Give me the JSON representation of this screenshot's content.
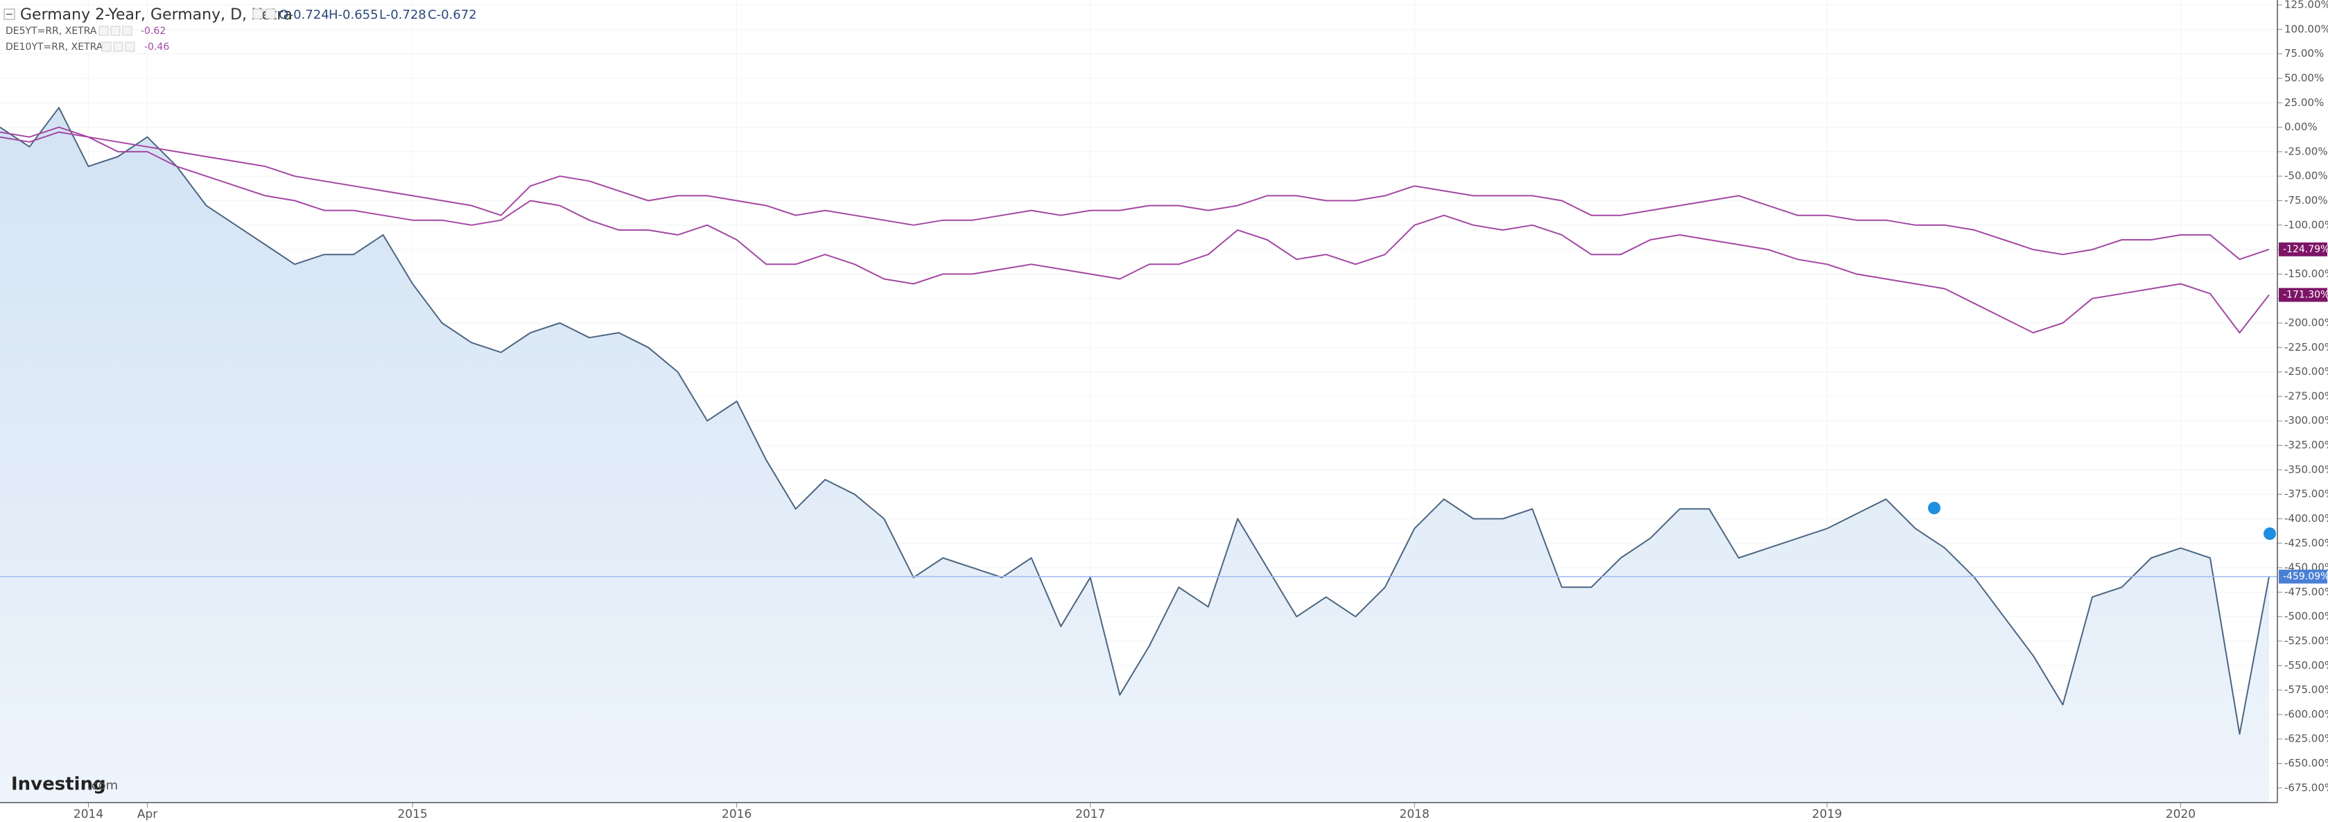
{
  "chart_data": {
    "type": "line",
    "title": "Germany 2-Year, Germany, D, Xetra",
    "ohlc": [
      "O-0.724",
      "H-0.655",
      "L-0.728",
      "C-0.672"
    ],
    "brand": [
      "Investing",
      ".com"
    ],
    "grid": true,
    "categories": [
      null,
      null,
      null,
      "2014",
      null,
      "Apr",
      null,
      null,
      null,
      null,
      null,
      null,
      null,
      null,
      "2015",
      null,
      null,
      null,
      null,
      null,
      null,
      null,
      null,
      null,
      null,
      "2016",
      null,
      null,
      null,
      null,
      null,
      null,
      null,
      null,
      null,
      null,
      null,
      "2017",
      null,
      null,
      null,
      null,
      null,
      null,
      null,
      null,
      null,
      null,
      "2018",
      null,
      null,
      null,
      null,
      null,
      null,
      null,
      null,
      null,
      null,
      null,
      null,
      null,
      "2019",
      null,
      null,
      null,
      null,
      null,
      null,
      null,
      null,
      null,
      null,
      null,
      "2020",
      null,
      null,
      null
    ],
    "series": [
      {
        "name": "Germany 2-Year, Germany, D, Xetra",
        "color": "#4b6582",
        "fill": "#dde9f6",
        "last_label": "-459.09%",
        "badge": "#4a7fd4",
        "values": [
          0,
          -20,
          20,
          -40,
          -30,
          -10,
          -40,
          -80,
          -100,
          -120,
          -140,
          -130,
          -130,
          -110,
          -160,
          -200,
          -220,
          -230,
          -210,
          -200,
          -215,
          -210,
          -225,
          -250,
          -300,
          -280,
          -340,
          -390,
          -360,
          -375,
          -400,
          -460,
          -440,
          -450,
          -460,
          -440,
          -510,
          -460,
          -580,
          -530,
          -470,
          -490,
          -400,
          -450,
          -500,
          -480,
          -500,
          -470,
          -410,
          -380,
          -400,
          -400,
          -390,
          -470,
          -470,
          -440,
          -420,
          -390,
          -390,
          -440,
          -430,
          -420,
          -410,
          -395,
          -380,
          -410,
          -430,
          -460,
          -500,
          -540,
          -590,
          -480,
          -470,
          -440,
          -430,
          -440,
          -620,
          -459.09
        ]
      },
      {
        "name": "DE5YT=RR, XETRA",
        "legend_value": "-0.62",
        "color": "#a347a3",
        "last_label": "-124.79%",
        "badge": "#7d1466",
        "values": [
          -5,
          -10,
          0,
          -10,
          -15,
          -20,
          -25,
          -30,
          -35,
          -40,
          -50,
          -55,
          -60,
          -65,
          -70,
          -75,
          -80,
          -90,
          -60,
          -50,
          -55,
          -65,
          -75,
          -70,
          -70,
          -75,
          -80,
          -90,
          -85,
          -90,
          -95,
          -100,
          -95,
          -95,
          -90,
          -85,
          -90,
          -85,
          -85,
          -80,
          -80,
          -85,
          -80,
          -70,
          -70,
          -75,
          -75,
          -70,
          -60,
          -65,
          -70,
          -70,
          -70,
          -75,
          -90,
          -90,
          -85,
          -80,
          -75,
          -70,
          -80,
          -90,
          -90,
          -95,
          -95,
          -100,
          -100,
          -105,
          -115,
          -125,
          -130,
          -125,
          -115,
          -115,
          -110,
          -110,
          -135,
          -124.79
        ]
      },
      {
        "name": "DE10YT=RR, XETRA",
        "legend_value": "-0.46",
        "color": "#a347a3",
        "last_label": "-171.30%",
        "badge": "#7d1466",
        "values": [
          -10,
          -15,
          -5,
          -10,
          -25,
          -25,
          -40,
          -50,
          -60,
          -70,
          -75,
          -85,
          -85,
          -90,
          -95,
          -95,
          -100,
          -95,
          -75,
          -80,
          -95,
          -105,
          -105,
          -110,
          -100,
          -115,
          -140,
          -140,
          -130,
          -140,
          -155,
          -160,
          -150,
          -150,
          -145,
          -140,
          -145,
          -150,
          -155,
          -140,
          -140,
          -130,
          -105,
          -115,
          -135,
          -130,
          -140,
          -130,
          -100,
          -90,
          -100,
          -105,
          -100,
          -110,
          -130,
          -130,
          -115,
          -110,
          -115,
          -120,
          -125,
          -135,
          -140,
          -150,
          -155,
          -160,
          -165,
          -180,
          -195,
          -210,
          -200,
          -175,
          -170,
          -165,
          -160,
          -170,
          -210,
          -171.3
        ]
      }
    ],
    "ylim": [
      -690,
      130
    ],
    "yticks": [
      {
        "value": 125,
        "label": "125.00%"
      },
      {
        "value": 100,
        "label": "100.00%"
      },
      {
        "value": 75,
        "label": "75.00%"
      },
      {
        "value": 50,
        "label": "50.00%"
      },
      {
        "value": 25,
        "label": "25.00%"
      },
      {
        "value": 0,
        "label": "0.00%"
      },
      {
        "value": -25,
        "label": "-25.00%"
      },
      {
        "value": -50,
        "label": "-50.00%"
      },
      {
        "value": -75,
        "label": "-75.00%"
      },
      {
        "value": -100,
        "label": "-100.00%"
      },
      {
        "value": -125,
        "label": "-125.00%"
      },
      {
        "value": -150,
        "label": "-150.00%"
      },
      {
        "value": -175,
        "label": "-175.00%"
      },
      {
        "value": -200,
        "label": "-200.00%"
      },
      {
        "value": -225,
        "label": "-225.00%"
      },
      {
        "value": -250,
        "label": "-250.00%"
      },
      {
        "value": -275,
        "label": "-275.00%"
      },
      {
        "value": -300,
        "label": "-300.00%"
      },
      {
        "value": -325,
        "label": "-325.00%"
      },
      {
        "value": -350,
        "label": "-350.00%"
      },
      {
        "value": -375,
        "label": "-375.00%"
      },
      {
        "value": -400,
        "label": "-400.00%"
      },
      {
        "value": -425,
        "label": "-425.00%"
      },
      {
        "value": -450,
        "label": "-450.00%"
      },
      {
        "value": -475,
        "label": "-475.00%"
      },
      {
        "value": -500,
        "label": "-500.00%"
      },
      {
        "value": -525,
        "label": "-525.00%"
      },
      {
        "value": -550,
        "label": "-550.00%"
      },
      {
        "value": -575,
        "label": "-575.00%"
      },
      {
        "value": -600,
        "label": "-600.00%"
      },
      {
        "value": -625,
        "label": "-625.00%"
      },
      {
        "value": -650,
        "label": "-650.00%"
      },
      {
        "value": -675,
        "label": "-675.00%"
      }
    ]
  }
}
